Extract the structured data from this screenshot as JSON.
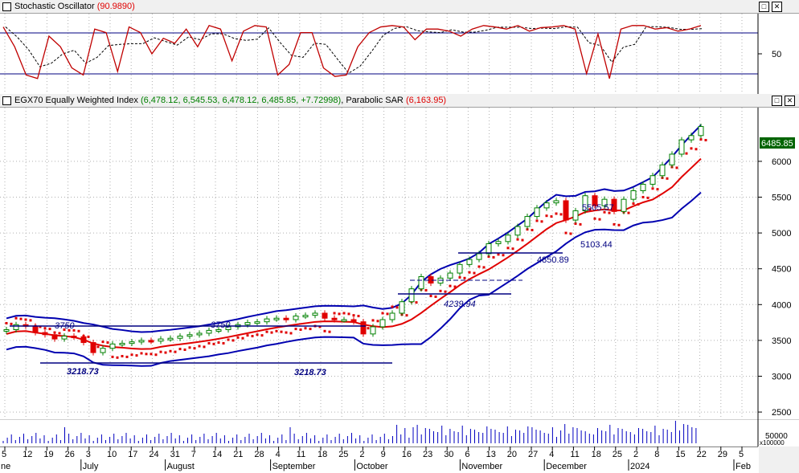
{
  "stoch_panel": {
    "title": "Stochastic Oscillator",
    "value": "(90.9890)",
    "ytick_50": "50"
  },
  "price_panel": {
    "name": "EGX70 Equally Weighted Index",
    "ohlc": "(6,478.12, 6,545.53, 6,478.12, 6,485.85, +7.72998)",
    "sar_name": "Parabolic SAR",
    "sar_value": "(6,163.95)",
    "last_price": "6485.85",
    "yticks": [
      "6000",
      "5500",
      "5000",
      "4500",
      "4000",
      "3500",
      "3000",
      "2500"
    ]
  },
  "volume_panel": {
    "ytick": "50000",
    "unit": "x100000"
  },
  "x_axis": {
    "day_ticks": [
      "5",
      "12",
      "19",
      "26",
      "3",
      "10",
      "17",
      "24",
      "31",
      "7",
      "14",
      "21",
      "28",
      "4",
      "11",
      "18",
      "25",
      "2",
      "9",
      "16",
      "23",
      "30",
      "6",
      "13",
      "20",
      "27",
      "4",
      "11",
      "18",
      "25",
      "2",
      "8",
      "15",
      "22",
      "29",
      "5"
    ],
    "partial_first_month": "ne",
    "months": [
      "July",
      "August",
      "September",
      "October",
      "November",
      "December",
      "2024",
      "Feb"
    ]
  },
  "annotations": {
    "res_3750_a": "3750",
    "res_3750_b": "3750",
    "sup_3218_a": "3218.73",
    "sup_3218_b": "3218.73",
    "lvl_4239": "4239.94",
    "lvl_4850": "4850.89",
    "lvl_5103": "5103.44",
    "lvl_5505": "5505.57"
  },
  "colors": {
    "candle_up": "#008000",
    "candle_down": "#e00000",
    "bands": "#0000b0",
    "mid_ma": "#e00000",
    "sar": "#e00000",
    "stoch_k": "#c00000",
    "stoch_d": "#000000",
    "grid": "#c0c0c0"
  },
  "chart_data": {
    "type": "line",
    "title": "EGX70 Equally Weighted Index",
    "series_price": [
      3650,
      3720,
      3700,
      3610,
      3580,
      3520,
      3560,
      3550,
      3470,
      3330,
      3390,
      3450,
      3460,
      3480,
      3500,
      3490,
      3520,
      3530,
      3560,
      3580,
      3600,
      3640,
      3650,
      3690,
      3720,
      3750,
      3760,
      3800,
      3810,
      3790,
      3840,
      3850,
      3880,
      3810,
      3790,
      3790,
      3760,
      3590,
      3690,
      3790,
      3880,
      4040,
      4220,
      4390,
      4300,
      4370,
      4440,
      4560,
      4630,
      4710,
      4850,
      4880,
      4970,
      5090,
      5230,
      5350,
      5420,
      5450,
      5180,
      5310,
      5520,
      5380,
      5470,
      5300,
      5470,
      5590,
      5680,
      5800,
      5950,
      6100,
      6300,
      6360,
      6485.85
    ],
    "ylim": [
      2400,
      6750
    ],
    "stochastic_k": [
      88,
      60,
      20,
      15,
      75,
      60,
      30,
      20,
      85,
      80,
      25,
      88,
      80,
      50,
      72,
      65,
      85,
      60,
      90,
      85,
      40,
      82,
      90,
      88,
      20,
      35,
      80,
      80,
      30,
      18,
      20,
      60,
      80,
      88,
      90,
      88,
      70,
      85,
      85,
      82,
      75,
      85,
      90,
      88,
      85,
      90,
      82,
      87,
      88,
      90,
      85,
      22,
      78,
      15,
      85,
      90,
      90,
      85,
      87,
      82,
      85,
      90
    ],
    "stochastic_ylim": [
      0,
      100
    ]
  }
}
